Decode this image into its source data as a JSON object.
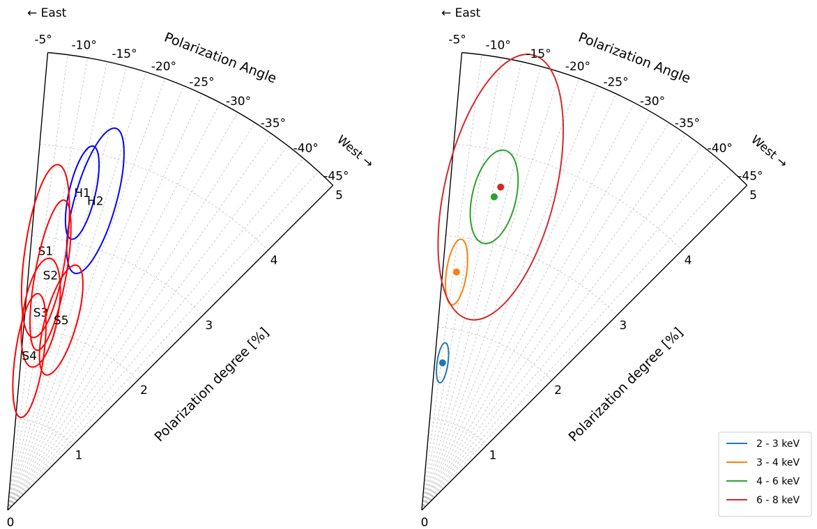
{
  "chart_data": [
    {
      "type": "polar-sector",
      "theta_label": "Polarization Angle",
      "r_label": "Polarization degree [%]",
      "east_label": "← East",
      "west_label": "West →",
      "theta_range_deg": [
        -5,
        -45
      ],
      "theta_ticks": [
        "-5°",
        "-10°",
        "-15°",
        "-20°",
        "-25°",
        "-30°",
        "-35°",
        "-40°",
        "-45°"
      ],
      "r_range": [
        0,
        5
      ],
      "r_ticks": [
        "0",
        "1",
        "2",
        "3",
        "4",
        "5"
      ],
      "grid": true,
      "regions": [
        {
          "label": "H1",
          "color": "#0000ff",
          "center_r": 3.55,
          "center_theta_deg": -13.2,
          "half_width_r": 0.52,
          "half_width_theta_deg": 2.3
        },
        {
          "label": "H2",
          "color": "#0000ff",
          "center_r": 3.5,
          "center_theta_deg": -15.8,
          "half_width_r": 0.82,
          "half_width_theta_deg": 3.7
        },
        {
          "label": "S1",
          "color": "#ff0000",
          "center_r": 2.85,
          "center_theta_deg": -8.3,
          "half_width_r": 0.95,
          "half_width_theta_deg": 4.5
        },
        {
          "label": "S2",
          "color": "#ff0000",
          "center_r": 2.6,
          "center_theta_deg": -10.3,
          "half_width_r": 0.83,
          "half_width_theta_deg": 3.7
        },
        {
          "label": "S3",
          "color": "#ff0000",
          "center_r": 2.18,
          "center_theta_deg": -9.5,
          "half_width_r": 0.6,
          "half_width_theta_deg": 5.0
        },
        {
          "label": "S4",
          "color": "#ff0000",
          "center_r": 1.7,
          "center_theta_deg": -8.0,
          "half_width_r": 0.68,
          "half_width_theta_deg": 5.2
        },
        {
          "label": "S5",
          "color": "#ff0000",
          "center_r": 2.15,
          "center_theta_deg": -15.7,
          "half_width_r": 0.62,
          "half_width_theta_deg": 4.6
        }
      ]
    },
    {
      "type": "polar-sector",
      "theta_label": "Polarization Angle",
      "r_label": "Polarization degree [%]",
      "east_label": "← East",
      "west_label": "West →",
      "theta_range_deg": [
        -5,
        -45
      ],
      "theta_ticks": [
        "-5°",
        "-10°",
        "-15°",
        "-20°",
        "-25°",
        "-30°",
        "-35°",
        "-40°",
        "-45°"
      ],
      "r_range": [
        0,
        5
      ],
      "r_ticks": [
        "0",
        "1",
        "2",
        "3",
        "4",
        "5"
      ],
      "grid": true,
      "legend_position": "lower-right",
      "series": [
        {
          "name": "2 - 3 keV",
          "color": "#1f77b4",
          "r": 1.62,
          "theta_deg": -8.0,
          "half_width_r": 0.22,
          "half_width_theta_deg": 2.1
        },
        {
          "name": "3 - 4 keV",
          "color": "#ff7f0e",
          "r": 2.62,
          "theta_deg": -8.3,
          "half_width_r": 0.36,
          "half_width_theta_deg": 2.4
        },
        {
          "name": "4 - 6 keV",
          "color": "#2ca02c",
          "r": 3.5,
          "theta_deg": -13.0,
          "half_width_r": 0.52,
          "half_width_theta_deg": 3.9
        },
        {
          "name": "6 - 8 keV",
          "color": "#d62728",
          "r": 3.62,
          "theta_deg": -13.7,
          "half_width_r": 1.48,
          "half_width_theta_deg": 9.5
        }
      ]
    }
  ]
}
